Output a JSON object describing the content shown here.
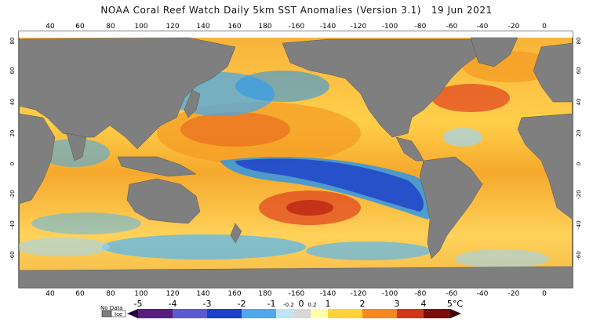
{
  "title": "NOAA Coral Reef Watch Daily 5km SST Anomalies (Version 3.1)   19 Jun 2021",
  "axes": {
    "lon_ticks": [
      "40",
      "60",
      "80",
      "100",
      "120",
      "140",
      "160",
      "180",
      "-160",
      "-140",
      "-120",
      "-100",
      "-80",
      "-60",
      "-40",
      "-20",
      "0"
    ],
    "lat_ticks": [
      "80",
      "60",
      "40",
      "20",
      "0",
      "-20",
      "-40",
      "-60"
    ]
  },
  "legend": {
    "no_data_label": "No Data",
    "ice_label": "Ice",
    "ticks": [
      "-5",
      "-4",
      "-3",
      "-2",
      "-1",
      "-0.2",
      "0",
      "0.2",
      "1",
      "2",
      "3",
      "4",
      "5°C"
    ],
    "colors": {
      "land": "#7f7f7f",
      "ice": "#ffffff",
      "near_zero": "#d8d8d8",
      "warm_1": "#ffe066",
      "warm_2": "#f7a21b",
      "warm_3": "#e0401e",
      "warm_4": "#8b0f0f",
      "cool_1": "#9fd6f5",
      "cool_2": "#2f96e6",
      "cool_3": "#1e3fc8",
      "cool_4": "#40187a"
    }
  }
}
